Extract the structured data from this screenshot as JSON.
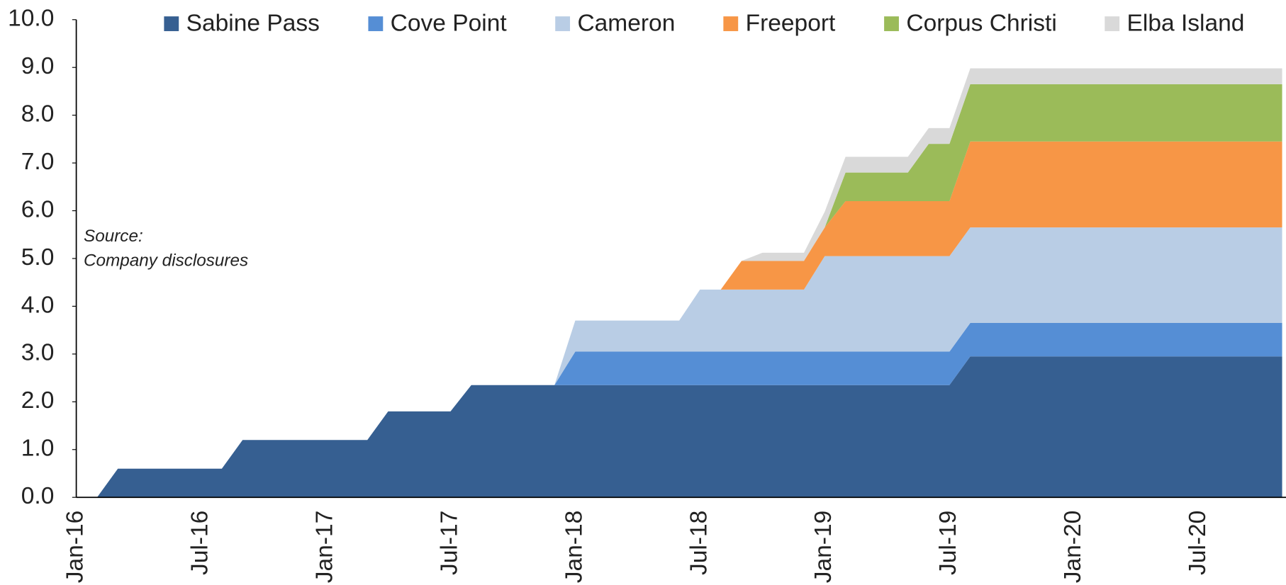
{
  "chart_data": {
    "type": "stacked_area",
    "categories": [
      "Jan-16",
      null,
      null,
      null,
      null,
      null,
      "Jul-16",
      null,
      null,
      null,
      null,
      null,
      "Jan-17",
      null,
      null,
      null,
      null,
      null,
      "Jul-17",
      null,
      null,
      null,
      null,
      null,
      "Jan-18",
      null,
      null,
      null,
      null,
      null,
      "Jul-18",
      null,
      null,
      null,
      null,
      null,
      "Jan-19",
      null,
      null,
      null,
      null,
      null,
      "Jul-19",
      null,
      null,
      null,
      null,
      null,
      "Jan-20",
      null,
      null,
      null,
      null,
      null,
      "Jul-20",
      null,
      null,
      null,
      null
    ],
    "series": [
      {
        "name": "Sabine Pass",
        "color": "#365f91",
        "values": [
          0,
          0,
          0.6,
          0.6,
          0.6,
          0.6,
          0.6,
          0.6,
          1.2,
          1.2,
          1.2,
          1.2,
          1.2,
          1.2,
          1.2,
          1.8,
          1.8,
          1.8,
          1.8,
          2.35,
          2.35,
          2.35,
          2.35,
          2.35,
          2.35,
          2.35,
          2.35,
          2.35,
          2.35,
          2.35,
          2.35,
          2.35,
          2.35,
          2.35,
          2.35,
          2.35,
          2.35,
          2.35,
          2.35,
          2.35,
          2.35,
          2.35,
          2.35,
          2.95,
          2.95,
          2.95,
          2.95,
          2.95,
          2.95,
          2.95,
          2.95,
          2.95,
          2.95,
          2.95,
          2.95,
          2.95,
          2.95,
          2.95,
          2.95
        ]
      },
      {
        "name": "Cove Point",
        "color": "#558ed5",
        "values": [
          0,
          0,
          0,
          0,
          0,
          0,
          0,
          0,
          0,
          0,
          0,
          0,
          0,
          0,
          0,
          0,
          0,
          0,
          0,
          0,
          0,
          0,
          0,
          0,
          0.7,
          0.7,
          0.7,
          0.7,
          0.7,
          0.7,
          0.7,
          0.7,
          0.7,
          0.7,
          0.7,
          0.7,
          0.7,
          0.7,
          0.7,
          0.7,
          0.7,
          0.7,
          0.7,
          0.7,
          0.7,
          0.7,
          0.7,
          0.7,
          0.7,
          0.7,
          0.7,
          0.7,
          0.7,
          0.7,
          0.7,
          0.7,
          0.7,
          0.7,
          0.7
        ]
      },
      {
        "name": "Cameron",
        "color": "#b9cde5",
        "values": [
          0,
          0,
          0,
          0,
          0,
          0,
          0,
          0,
          0,
          0,
          0,
          0,
          0,
          0,
          0,
          0,
          0,
          0,
          0,
          0,
          0,
          0,
          0,
          0,
          0.65,
          0.65,
          0.65,
          0.65,
          0.65,
          0.65,
          1.3,
          1.3,
          1.3,
          1.3,
          1.3,
          1.3,
          2.0,
          2.0,
          2.0,
          2.0,
          2.0,
          2.0,
          2.0,
          2.0,
          2.0,
          2.0,
          2.0,
          2.0,
          2.0,
          2.0,
          2.0,
          2.0,
          2.0,
          2.0,
          2.0,
          2.0,
          2.0,
          2.0,
          2.0
        ]
      },
      {
        "name": "Freeport",
        "color": "#f79646",
        "values": [
          0,
          0,
          0,
          0,
          0,
          0,
          0,
          0,
          0,
          0,
          0,
          0,
          0,
          0,
          0,
          0,
          0,
          0,
          0,
          0,
          0,
          0,
          0,
          0,
          0,
          0,
          0,
          0,
          0,
          0,
          0,
          0,
          0.6,
          0.6,
          0.6,
          0.6,
          0.6,
          1.15,
          1.15,
          1.15,
          1.15,
          1.15,
          1.15,
          1.8,
          1.8,
          1.8,
          1.8,
          1.8,
          1.8,
          1.8,
          1.8,
          1.8,
          1.8,
          1.8,
          1.8,
          1.8,
          1.8,
          1.8,
          1.8
        ]
      },
      {
        "name": "Corpus Christi",
        "color": "#9bbb59",
        "values": [
          0,
          0,
          0,
          0,
          0,
          0,
          0,
          0,
          0,
          0,
          0,
          0,
          0,
          0,
          0,
          0,
          0,
          0,
          0,
          0,
          0,
          0,
          0,
          0,
          0,
          0,
          0,
          0,
          0,
          0,
          0,
          0,
          0,
          0,
          0,
          0,
          0,
          0.6,
          0.6,
          0.6,
          0.6,
          1.2,
          1.2,
          1.2,
          1.2,
          1.2,
          1.2,
          1.2,
          1.2,
          1.2,
          1.2,
          1.2,
          1.2,
          1.2,
          1.2,
          1.2,
          1.2,
          1.2,
          1.2
        ]
      },
      {
        "name": "Elba Island",
        "color": "#d9d9d9",
        "values": [
          0,
          0,
          0,
          0,
          0,
          0,
          0,
          0,
          0,
          0,
          0,
          0,
          0,
          0,
          0,
          0,
          0,
          0,
          0,
          0,
          0,
          0,
          0,
          0,
          0,
          0,
          0,
          0,
          0,
          0,
          0,
          0,
          0,
          0.17,
          0.17,
          0.17,
          0.33,
          0.33,
          0.33,
          0.33,
          0.33,
          0.33,
          0.33,
          0.33,
          0.33,
          0.33,
          0.33,
          0.33,
          0.33,
          0.33,
          0.33,
          0.33,
          0.33,
          0.33,
          0.33,
          0.33,
          0.33,
          0.33,
          0.33
        ]
      }
    ],
    "ylim": [
      0,
      10
    ],
    "yticks": [
      {
        "value": 0,
        "label": "0.0"
      },
      {
        "value": 1,
        "label": "1.0"
      },
      {
        "value": 2,
        "label": "2.0"
      },
      {
        "value": 3,
        "label": "3.0"
      },
      {
        "value": 4,
        "label": "4.0"
      },
      {
        "value": 5,
        "label": "5.0"
      },
      {
        "value": 6,
        "label": "6.0"
      },
      {
        "value": 7,
        "label": "7.0"
      },
      {
        "value": 8,
        "label": "8.0"
      },
      {
        "value": 9,
        "label": "9.0"
      },
      {
        "value": 10,
        "label": "10.0"
      }
    ],
    "annotation": [
      "Source:",
      "Company disclosures"
    ],
    "legend": "top"
  }
}
